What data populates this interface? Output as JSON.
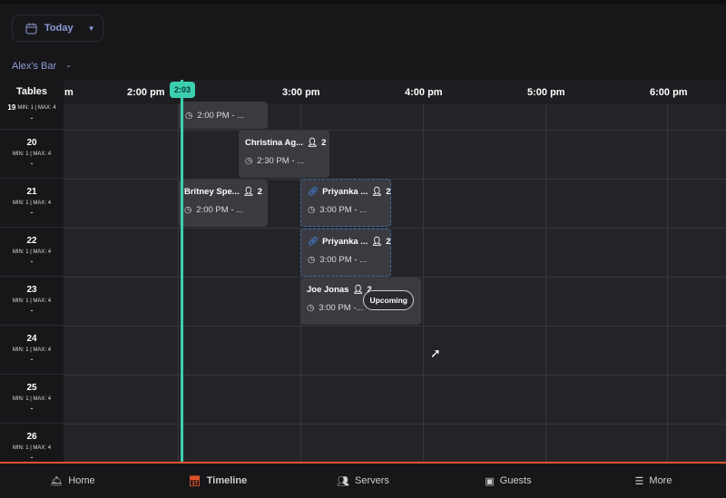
{
  "header": {
    "date_label": "Today",
    "venue": "Alex's Bar"
  },
  "timeline": {
    "tables_label": "Tables",
    "hours": [
      "m",
      "2:00 pm",
      "3:00 pm",
      "4:00 pm",
      "5:00 pm",
      "6:00 pm"
    ],
    "now": "2:03"
  },
  "tables": [
    {
      "number": "19",
      "capacity": "MIN: 1 | MAX: 4",
      "dash": "-"
    },
    {
      "number": "20",
      "capacity": "MIN: 1 | MAX: 4",
      "dash": "-"
    },
    {
      "number": "21",
      "capacity": "MIN: 1 | MAX: 4",
      "dash": "-"
    },
    {
      "number": "22",
      "capacity": "MIN: 1 | MAX: 4",
      "dash": "-"
    },
    {
      "number": "23",
      "capacity": "MIN: 1 | MAX: 4",
      "dash": "-"
    },
    {
      "number": "24",
      "capacity": "MIN: 1 | MAX: 4",
      "dash": "-"
    },
    {
      "number": "25",
      "capacity": "MIN: 1 | MAX: 4",
      "dash": "-"
    },
    {
      "number": "26",
      "capacity": "MIN: 1 | MAX: 4",
      "dash": "-"
    }
  ],
  "reservations": [
    {
      "table": "19",
      "time": "2:00 PM - ..."
    },
    {
      "table": "20",
      "name": "Christina Ag...",
      "guests": "2",
      "time": "2:30 PM - ..."
    },
    {
      "table": "21",
      "name": "Britney Spe...",
      "guests": "2",
      "time": "2:00 PM - ..."
    },
    {
      "table": "21",
      "name": "Priyanka ...",
      "guests": "2",
      "time": "3:00 PM - ...",
      "linked": true
    },
    {
      "table": "22",
      "name": "Priyanka ...",
      "guests": "2",
      "time": "3:00 PM - ...",
      "linked": true
    },
    {
      "table": "23",
      "name": "Joe Jonas",
      "guests": "2",
      "time": "3:00 PM -...",
      "status": "Upcoming"
    }
  ],
  "nav": [
    {
      "label": "Home",
      "icon": "cloche-icon"
    },
    {
      "label": "Timeline",
      "icon": "calendar-clock-icon",
      "active": true
    },
    {
      "label": "Servers",
      "icon": "servers-icon"
    },
    {
      "label": "Guests",
      "icon": "guest-card-icon"
    },
    {
      "label": "More",
      "icon": "menu-icon"
    }
  ],
  "colors": {
    "accent": "#3ccfb0",
    "nav_active": "#e0542a",
    "link": "#8d9bd6"
  }
}
